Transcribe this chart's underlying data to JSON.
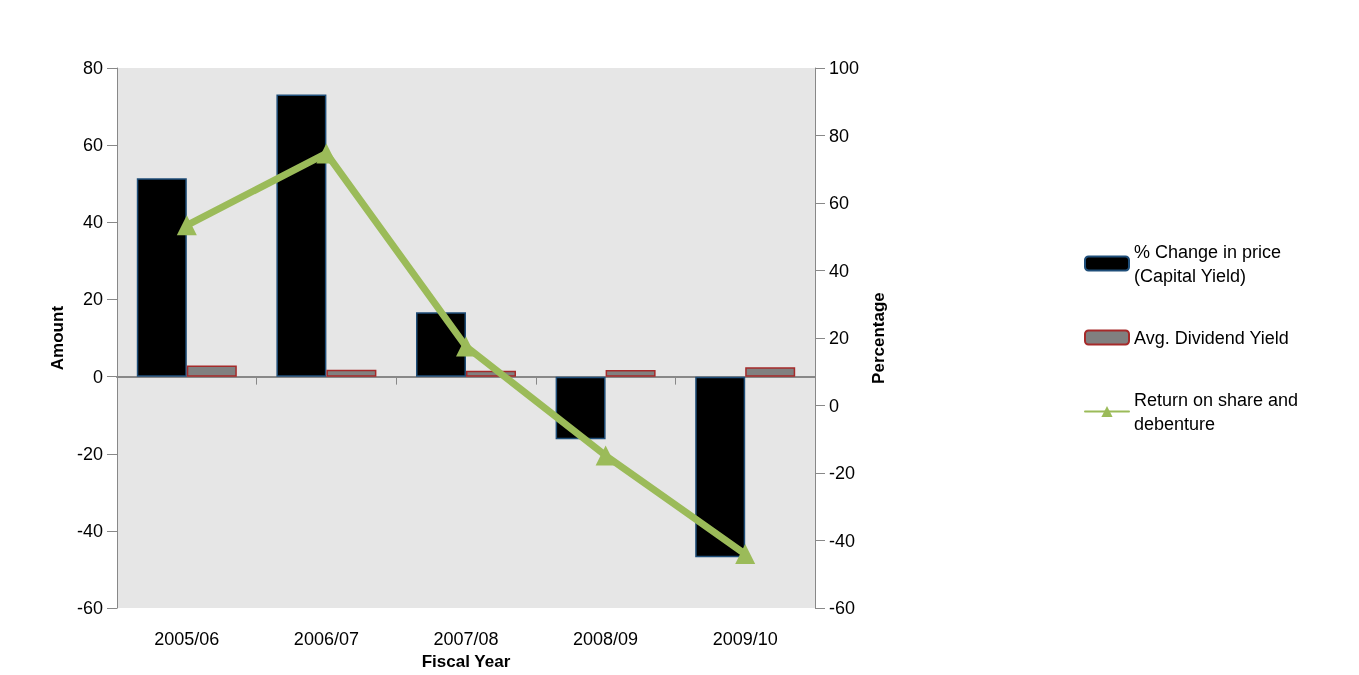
{
  "chart_data": {
    "type": "bar",
    "xlabel": "Fiscal Year",
    "ylabel": "Amount",
    "y2label": "Percentage",
    "categories": [
      "2005/06",
      "2006/07",
      "2007/08",
      "2008/09",
      "2009/10"
    ],
    "series": [
      {
        "name": "% Change in price (Capital Yield)",
        "color": "#000000",
        "values": [
          51.4,
          73.1,
          16.7,
          -16.2,
          -46.8
        ]
      },
      {
        "name": "Avg. Dividend Yield",
        "color": "#808080",
        "values": [
          2.9,
          1.8,
          1.5,
          1.7,
          2.4
        ]
      },
      {
        "name": "Return on share and debenture",
        "type": "line",
        "axis": "y2",
        "color": "#9bbb59",
        "marker": "triangle",
        "values": [
          53.4,
          74.7,
          17.5,
          -14.8,
          -44.0
        ]
      }
    ],
    "ylim": [
      -60,
      80
    ],
    "yticks": [
      -60,
      -40,
      -20,
      0,
      20,
      40,
      60,
      80
    ],
    "y2lim": [
      -60,
      100
    ],
    "y2ticks": [
      -60,
      -40,
      -20,
      0,
      20,
      40,
      60,
      80,
      100
    ],
    "legend": "right"
  }
}
